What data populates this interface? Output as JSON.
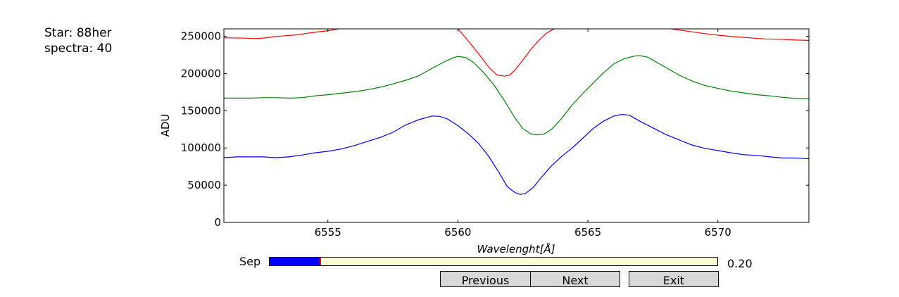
{
  "info": {
    "star_label": "Star: 88her",
    "spectra_label": "spectra: 40"
  },
  "controls": {
    "slider_label": "Sep",
    "slider_value_text": "0.20",
    "slider_fraction": 0.113,
    "previous_label": "Previous",
    "next_label": "Next",
    "exit_label": "Exit"
  },
  "colors": {
    "series_red": "#ff0000",
    "series_green": "#008000",
    "series_blue": "#0000ff",
    "slider_track": "#fafad2",
    "slider_fill": "#0000ff"
  },
  "chart_data": {
    "type": "line",
    "xlabel": "Wavelenght[Å]",
    "ylabel": "ADU",
    "xlim": [
      6551,
      6573.5
    ],
    "ylim": [
      0,
      260000
    ],
    "xticks": [
      6555,
      6560,
      6565,
      6570
    ],
    "yticks": [
      0,
      50000,
      100000,
      150000,
      200000,
      250000
    ],
    "grid": false,
    "series": [
      {
        "color": "#ff0000",
        "segments": [
          {
            "x": [
              6551,
              6551.8,
              6552.2,
              6552.6,
              6553.0,
              6553.4,
              6553.8,
              6554.2,
              6554.6,
              6555.0,
              6555.4
            ],
            "y": [
              248000,
              247500,
              247000,
              247800,
              249800,
              250800,
              252000,
              254000,
              255800,
              257500,
              260000
            ]
          },
          {
            "x": [
              6560.0,
              6560.3,
              6560.6,
              6560.9,
              6561.2,
              6561.5,
              6561.8,
              6562.0,
              6562.2,
              6562.5,
              6562.8,
              6563.1,
              6563.4,
              6563.7
            ],
            "y": [
              260000,
              248000,
              235000,
              222000,
              208000,
              198000,
              196500,
              198000,
              205000,
              218000,
              232000,
              244000,
              254000,
              260000
            ]
          },
          {
            "x": [
              6568.2,
              6568.8,
              6569.4,
              6570.0,
              6570.6,
              6571.2,
              6571.8,
              6572.4,
              6573.0,
              6573.5
            ],
            "y": [
              260000,
              257000,
              254000,
              251500,
              249500,
              248000,
              246500,
              246000,
              245000,
              244500
            ]
          }
        ]
      },
      {
        "color": "#008000",
        "x": [
          6551,
          6551.5,
          6552,
          6552.5,
          6553,
          6553.5,
          6554,
          6554.5,
          6555,
          6555.5,
          6556,
          6556.5,
          6557,
          6557.5,
          6558,
          6558.5,
          6559,
          6559.5,
          6559.8,
          6560.0,
          6560.3,
          6560.6,
          6561.0,
          6561.4,
          6561.8,
          6562.2,
          6562.5,
          6562.8,
          6563.0,
          6563.3,
          6563.6,
          6564.0,
          6564.4,
          6564.8,
          6565.2,
          6565.6,
          6566.0,
          6566.4,
          6566.8,
          6567.0,
          6567.3,
          6567.6,
          6568.0,
          6568.5,
          6569.0,
          6569.5,
          6570.0,
          6570.5,
          6571.0,
          6571.5,
          6572.0,
          6572.5,
          6573.0,
          6573.5
        ],
        "y": [
          167000,
          167000,
          167000,
          167500,
          167500,
          167000,
          167500,
          170000,
          171500,
          173500,
          175500,
          178000,
          181500,
          186000,
          191000,
          197000,
          207000,
          216000,
          221000,
          223000,
          221500,
          215000,
          201000,
          184000,
          163000,
          140000,
          126000,
          119000,
          117500,
          118500,
          125000,
          140000,
          158000,
          173000,
          187000,
          201000,
          213000,
          220000,
          223500,
          224000,
          222000,
          216000,
          208000,
          198000,
          190000,
          184000,
          180000,
          176500,
          174000,
          171500,
          170000,
          168000,
          166500,
          166000
        ]
      },
      {
        "color": "#0000ff",
        "x": [
          6551,
          6551.5,
          6552,
          6552.5,
          6553,
          6553.5,
          6554,
          6554.5,
          6555,
          6555.5,
          6556,
          6556.5,
          6557,
          6557.5,
          6558,
          6558.5,
          6559,
          6559.3,
          6559.6,
          6560.0,
          6560.4,
          6560.8,
          6561.2,
          6561.6,
          6561.9,
          6562.2,
          6562.4,
          6562.6,
          6562.9,
          6563.2,
          6563.6,
          6564.0,
          6564.4,
          6564.8,
          6565.2,
          6565.6,
          6566.0,
          6566.3,
          6566.6,
          6567.0,
          6567.5,
          6568.0,
          6568.5,
          6569.0,
          6569.5,
          6570.0,
          6570.5,
          6571.0,
          6571.5,
          6572.0,
          6572.5,
          6573.0,
          6573.5
        ],
        "y": [
          87000,
          88000,
          88000,
          88000,
          87000,
          88000,
          90500,
          93500,
          95500,
          98500,
          103000,
          108500,
          114000,
          121000,
          131000,
          138000,
          143000,
          142500,
          139000,
          130000,
          119000,
          106000,
          88000,
          66000,
          48000,
          40000,
          37500,
          39000,
          47000,
          60000,
          76000,
          89000,
          100000,
          113000,
          126000,
          136000,
          143000,
          145000,
          144000,
          136000,
          127000,
          118000,
          111000,
          104000,
          99500,
          96500,
          93500,
          91000,
          90000,
          88000,
          86500,
          86500,
          85500
        ]
      }
    ]
  }
}
